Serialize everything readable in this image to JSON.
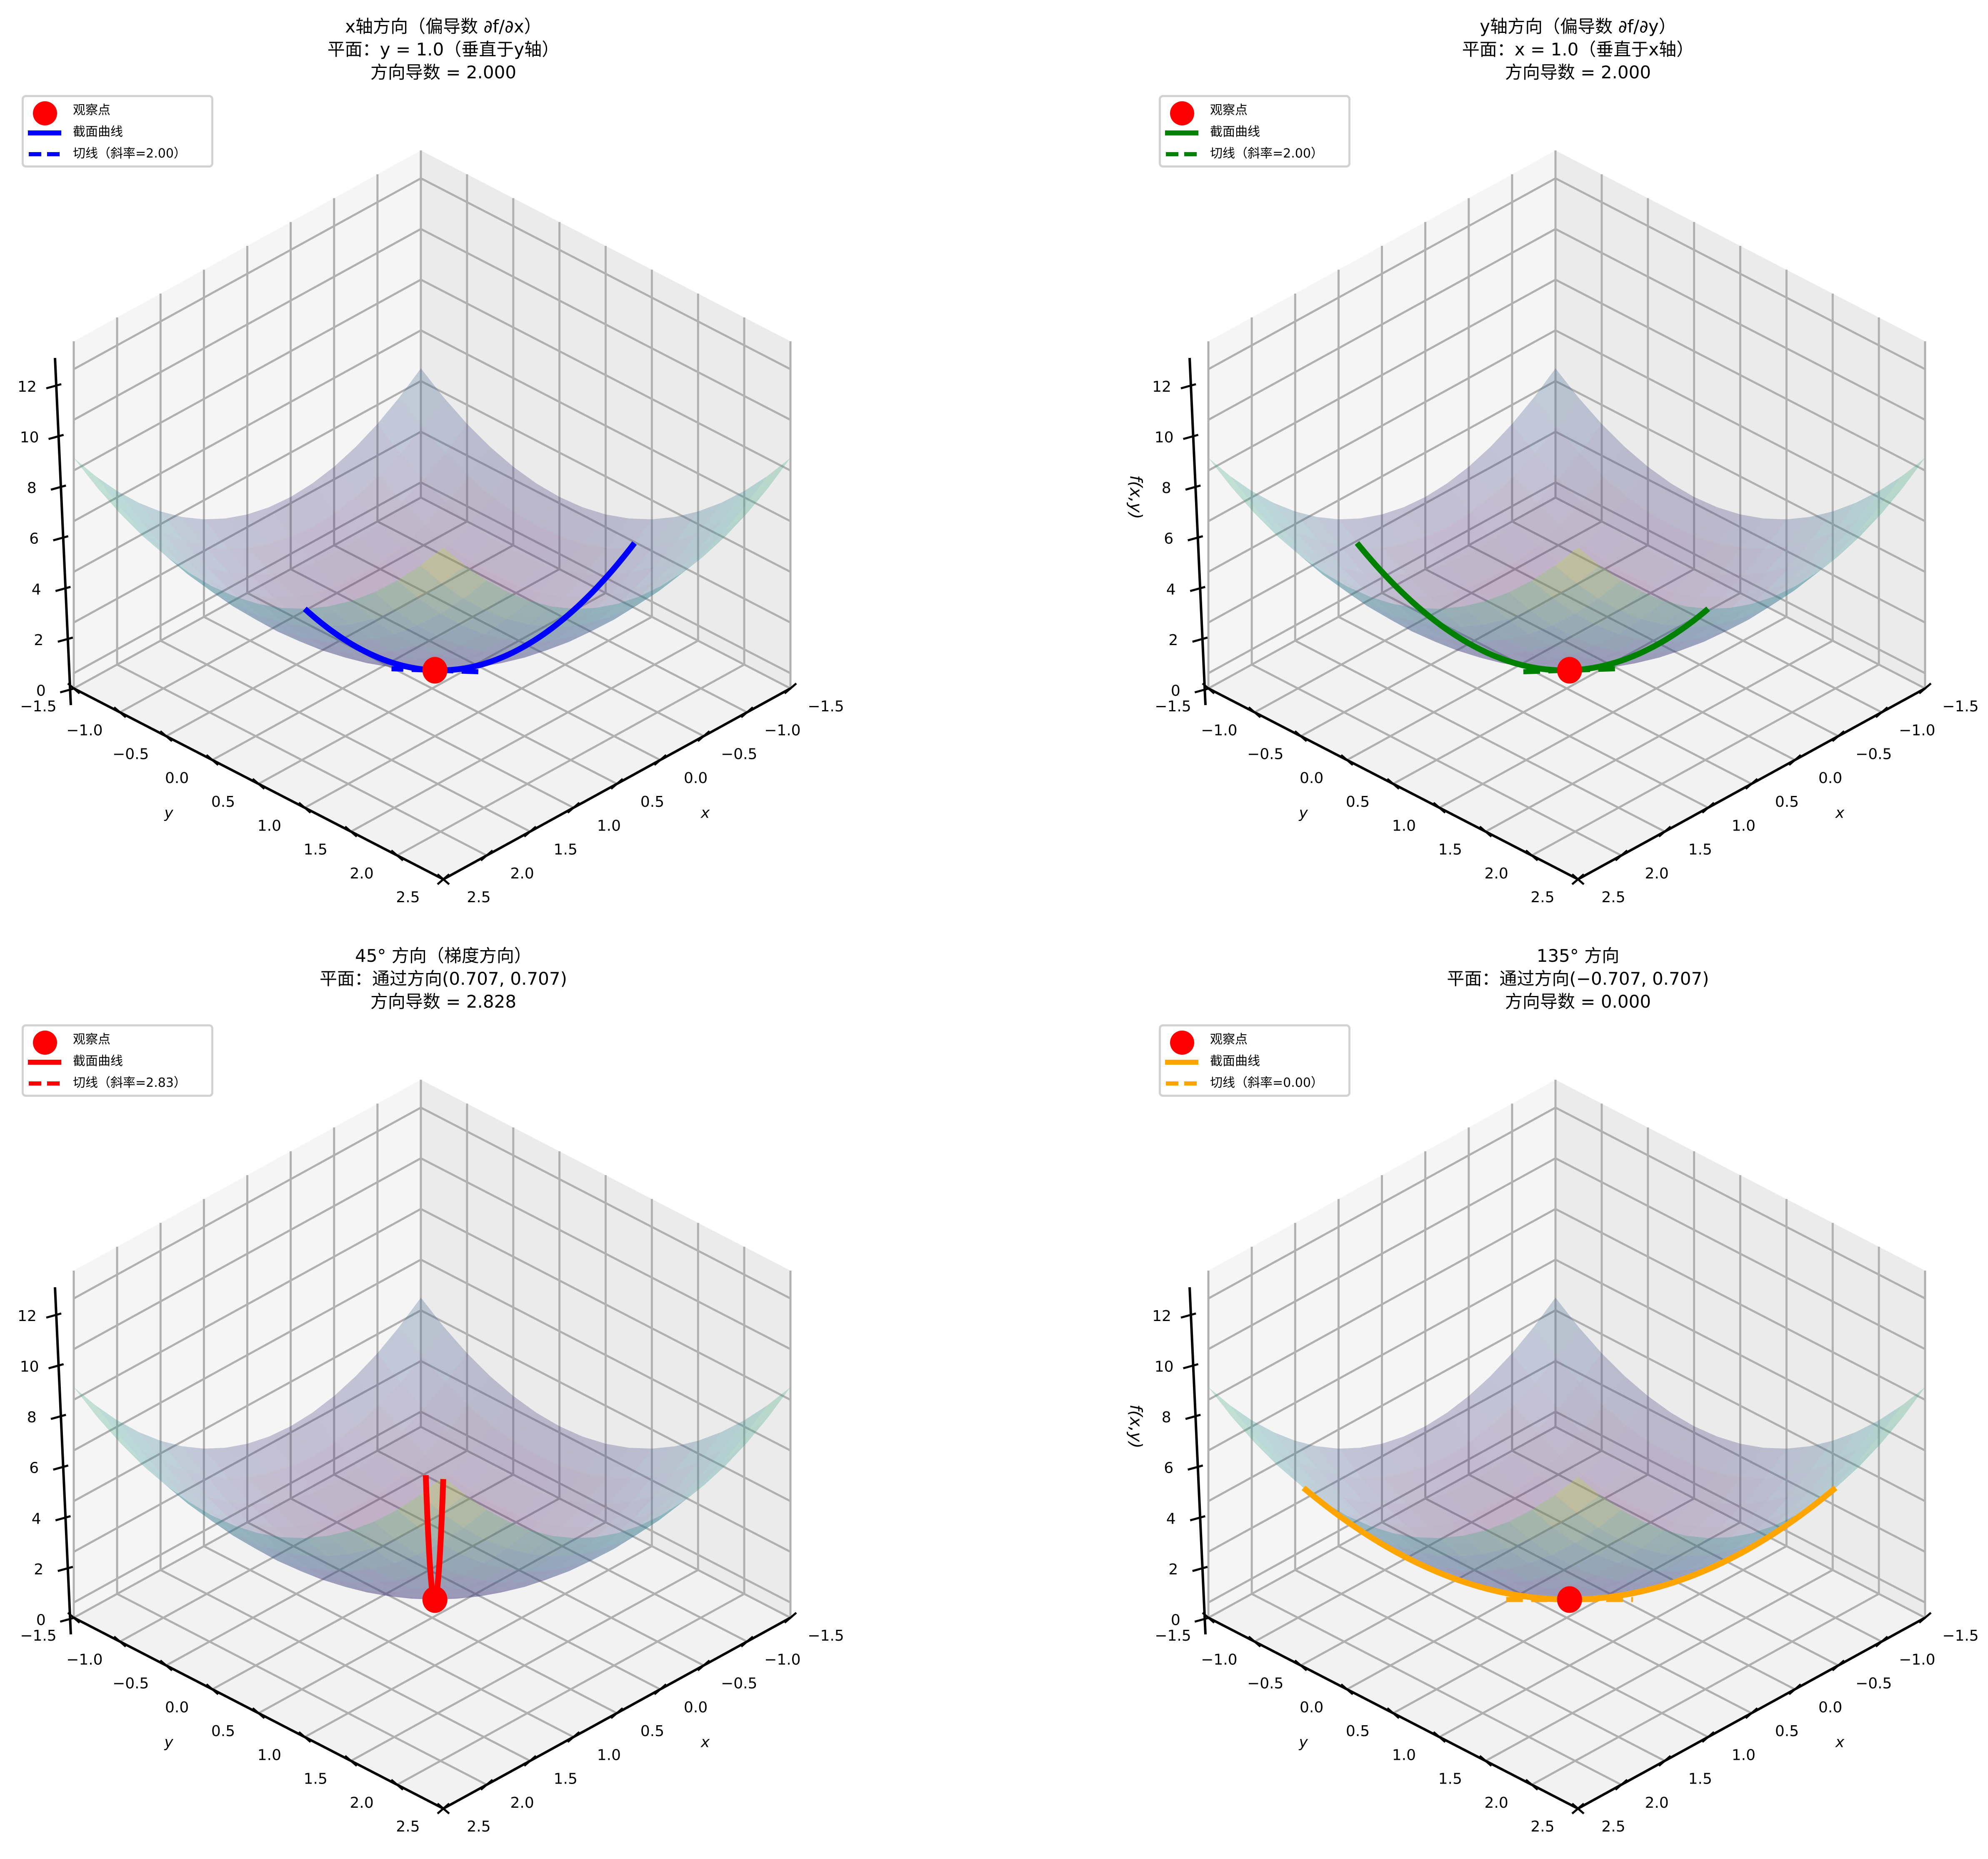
{
  "chart_data": [
    {
      "type": "surface3d",
      "title": [
        "x轴方向（偏导数 ∂f/∂x）",
        "平面：y = 1.0（垂直于y轴）",
        "方向导数 = 2.000"
      ],
      "xlabel": "x",
      "ylabel": "y",
      "zlabel": "",
      "xlim": [
        -1.5,
        2.5
      ],
      "ylim": [
        -1.5,
        2.5
      ],
      "zlim": [
        -0.6,
        13.1
      ],
      "xticks": [
        "−1.5",
        "−1.0",
        "−0.5",
        "0.0",
        "0.5",
        "1.0",
        "1.5",
        "2.0",
        "2.5"
      ],
      "yticks": [
        "−1.5",
        "−1.0",
        "−0.5",
        "0.0",
        "0.5",
        "1.0",
        "1.5",
        "2.0",
        "2.5"
      ],
      "zticks": [
        "0",
        "2",
        "4",
        "6",
        "8",
        "10",
        "12"
      ],
      "point": {
        "x": 1.0,
        "y": 1.0,
        "z": 2.0
      },
      "direction": [
        1.0,
        0.0
      ],
      "curve_color": "#0000ff",
      "slope": 2.0,
      "legend": [
        "观察点",
        "截面曲线",
        "切线（斜率=2.00）"
      ],
      "legend_loc": "upper-left"
    },
    {
      "type": "surface3d",
      "title": [
        "y轴方向（偏导数 ∂f/∂y）",
        "平面：x = 1.0（垂直于x轴）",
        "方向导数 = 2.000"
      ],
      "xlabel": "x",
      "ylabel": "y",
      "zlabel": "f(x,y)",
      "xlim": [
        -1.5,
        2.5
      ],
      "ylim": [
        -1.5,
        2.5
      ],
      "zlim": [
        -0.6,
        13.1
      ],
      "xticks": [
        "−1.5",
        "−1.0",
        "−0.5",
        "0.0",
        "0.5",
        "1.0",
        "1.5",
        "2.0",
        "2.5"
      ],
      "yticks": [
        "−1.5",
        "−1.0",
        "−0.5",
        "0.0",
        "0.5",
        "1.0",
        "1.5",
        "2.0",
        "2.5"
      ],
      "zticks": [
        "0",
        "2",
        "4",
        "6",
        "8",
        "10",
        "12"
      ],
      "point": {
        "x": 1.0,
        "y": 1.0,
        "z": 2.0
      },
      "direction": [
        0.0,
        1.0
      ],
      "curve_color": "#008000",
      "slope": 2.0,
      "legend": [
        "观察点",
        "截面曲线",
        "切线（斜率=2.00）"
      ],
      "legend_loc": "upper-left"
    },
    {
      "type": "surface3d",
      "title": [
        "45° 方向（梯度方向）",
        "平面：通过方向(0.707, 0.707)",
        "方向导数 = 2.828"
      ],
      "xlabel": "x",
      "ylabel": "y",
      "zlabel": "",
      "xlim": [
        -1.5,
        2.5
      ],
      "ylim": [
        -1.5,
        2.5
      ],
      "zlim": [
        -0.6,
        13.1
      ],
      "xticks": [
        "−1.5",
        "−1.0",
        "−0.5",
        "0.0",
        "0.5",
        "1.0",
        "1.5",
        "2.0",
        "2.5"
      ],
      "yticks": [
        "−1.5",
        "−1.0",
        "−0.5",
        "0.0",
        "0.5",
        "1.0",
        "1.5",
        "2.0",
        "2.5"
      ],
      "zticks": [
        "0",
        "2",
        "4",
        "6",
        "8",
        "10",
        "12"
      ],
      "point": {
        "x": 1.0,
        "y": 1.0,
        "z": 2.0
      },
      "direction": [
        0.707,
        0.707
      ],
      "curve_color": "#ff0000",
      "slope": 2.83,
      "legend": [
        "观察点",
        "截面曲线",
        "切线（斜率=2.83）"
      ],
      "legend_loc": "upper-left"
    },
    {
      "type": "surface3d",
      "title": [
        "135° 方向",
        "平面：通过方向(−0.707, 0.707)",
        "方向导数 = 0.000"
      ],
      "xlabel": "x",
      "ylabel": "y",
      "zlabel": "f(x,y)",
      "xlim": [
        -1.5,
        2.5
      ],
      "ylim": [
        -1.5,
        2.5
      ],
      "zlim": [
        -0.6,
        13.1
      ],
      "xticks": [
        "−1.5",
        "−1.0",
        "−0.5",
        "0.0",
        "0.5",
        "1.0",
        "1.5",
        "2.0",
        "2.5"
      ],
      "yticks": [
        "−1.5",
        "−1.0",
        "−0.5",
        "0.0",
        "0.5",
        "1.0",
        "1.5",
        "2.0",
        "2.5"
      ],
      "zticks": [
        "0",
        "2",
        "4",
        "6",
        "8",
        "10",
        "12"
      ],
      "point": {
        "x": 1.0,
        "y": 1.0,
        "z": 2.0
      },
      "direction": [
        -0.707,
        0.707
      ],
      "curve_color": "#ffa500",
      "slope": 0.0,
      "legend": [
        "观察点",
        "截面曲线",
        "切线（斜率=0.00）"
      ],
      "legend_loc": "upper-left"
    }
  ]
}
